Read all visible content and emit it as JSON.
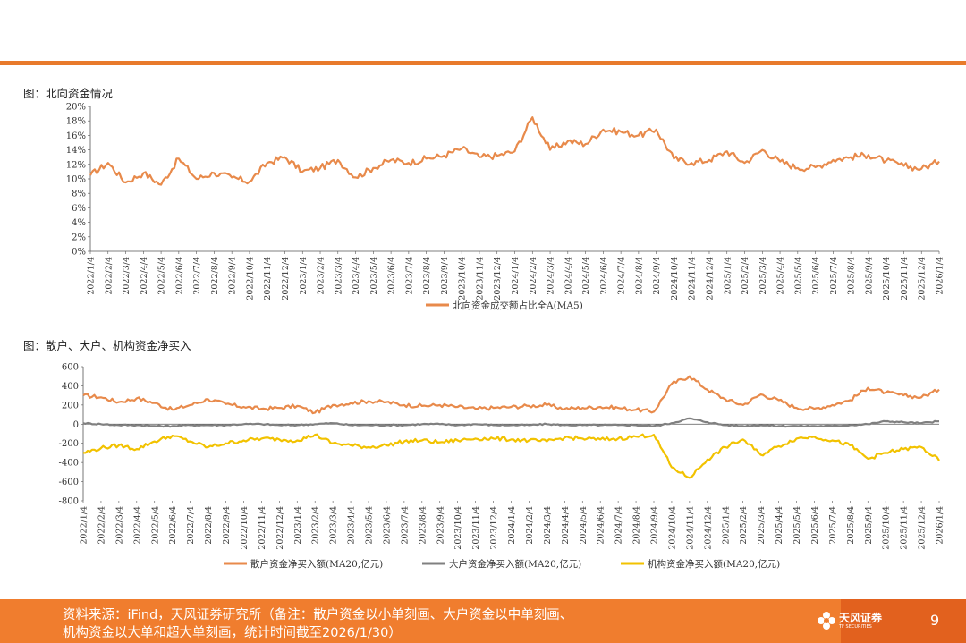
{
  "figure1_title": "图：北向资金情况",
  "figure2_title": "图：散户、大户、机构资金净买入",
  "footer": {
    "line1": "资料来源：iFind，天风证券研究所（备注：散户资金以小单刻画、大户资金以中单刻画、",
    "line2": "机构资金以大单和超大单刻画，统计时间截至2026/1/30）",
    "logo_text": "天风证券",
    "logo_sub": "TF SECURITIES",
    "page_number": "9"
  },
  "colors": {
    "orange": "#E88A4B",
    "gray": "#808080",
    "yellow": "#F2C200",
    "accent": "#E87A2B",
    "footer": "#F07D2E"
  },
  "chart_data": [
    {
      "type": "line",
      "ylim": [
        0,
        20
      ],
      "y_ticks": [
        "0%",
        "2%",
        "4%",
        "6%",
        "8%",
        "10%",
        "12%",
        "14%",
        "16%",
        "18%",
        "20%"
      ],
      "x_labels": [
        "2022/1/4",
        "2022/2/4",
        "2022/3/4",
        "2022/4/4",
        "2022/5/4",
        "2022/6/4",
        "2022/7/4",
        "2022/8/4",
        "2022/9/4",
        "2022/10/4",
        "2022/11/4",
        "2022/12/4",
        "2023/1/4",
        "2023/2/4",
        "2023/3/4",
        "2023/4/4",
        "2023/5/4",
        "2023/6/4",
        "2023/7/4",
        "2023/8/4",
        "2023/9/4",
        "2023/10/4",
        "2023/11/4",
        "2023/12/4",
        "2024/1/4",
        "2024/2/4",
        "2024/3/4",
        "2024/4/4",
        "2024/5/4",
        "2024/6/4",
        "2024/7/4",
        "2024/8/4",
        "2024/9/4",
        "2024/10/4",
        "2024/11/4",
        "2024/12/4",
        "2025/1/4",
        "2025/2/4",
        "2025/3/4",
        "2025/4/4",
        "2025/5/4",
        "2025/6/4",
        "2025/7/4",
        "2025/8/4",
        "2025/9/4",
        "2025/10/4",
        "2025/11/4",
        "2025/12/4",
        "2026/1/4"
      ],
      "series": [
        {
          "name": "北向资金成交额占比全A(MA5)",
          "color": "#E88A4B",
          "values": [
            10.5,
            12.2,
            9.5,
            10.8,
            9.2,
            12.8,
            10.0,
            10.8,
            10.2,
            9.6,
            12.2,
            13.0,
            11.0,
            11.5,
            12.6,
            10.2,
            11.5,
            12.6,
            12.2,
            12.8,
            13.2,
            14.2,
            13.0,
            13.2,
            13.8,
            18.5,
            14.0,
            15.2,
            14.8,
            16.8,
            16.5,
            16.0,
            16.8,
            12.8,
            12.2,
            12.6,
            13.8,
            12.2,
            14.0,
            12.4,
            11.5,
            11.6,
            12.6,
            13.0,
            13.3,
            12.5,
            11.8,
            11.4,
            12.4
          ]
        }
      ]
    },
    {
      "type": "line",
      "ylim": [
        -800,
        600
      ],
      "y_ticks": [
        "-800",
        "-600",
        "-400",
        "-200",
        "0",
        "200",
        "400",
        "600"
      ],
      "x_labels": [
        "2022/1/4",
        "2022/2/4",
        "2022/3/4",
        "2022/4/4",
        "2022/5/4",
        "2022/6/4",
        "2022/7/4",
        "2022/8/4",
        "2022/9/4",
        "2022/10/4",
        "2022/11/4",
        "2022/12/4",
        "2023/1/4",
        "2023/2/4",
        "2023/3/4",
        "2023/4/4",
        "2023/5/4",
        "2023/6/4",
        "2023/7/4",
        "2023/8/4",
        "2023/9/4",
        "2023/10/4",
        "2023/11/4",
        "2023/12/4",
        "2024/1/4",
        "2024/2/4",
        "2024/3/4",
        "2024/4/4",
        "2024/5/4",
        "2024/6/4",
        "2024/7/4",
        "2024/8/4",
        "2024/9/4",
        "2024/10/4",
        "2024/11/4",
        "2024/12/4",
        "2025/1/4",
        "2025/2/4",
        "2025/3/4",
        "2025/4/4",
        "2025/5/4",
        "2025/6/4",
        "2025/7/4",
        "2025/8/4",
        "2025/9/4",
        "2025/10/4",
        "2025/11/4",
        "2025/12/4",
        "2026/1/4"
      ],
      "series": [
        {
          "name": "散户资金净买入额(MA20,亿元)",
          "color": "#E88A4B",
          "values": [
            300,
            280,
            230,
            270,
            220,
            150,
            200,
            260,
            210,
            180,
            160,
            170,
            190,
            120,
            200,
            220,
            240,
            230,
            200,
            190,
            200,
            180,
            160,
            170,
            180,
            190,
            200,
            160,
            170,
            180,
            170,
            150,
            130,
            420,
            500,
            360,
            260,
            200,
            310,
            250,
            170,
            160,
            200,
            250,
            380,
            330,
            300,
            280,
            360
          ]
        },
        {
          "name": "大户资金净买入额(MA20,亿元)",
          "color": "#808080",
          "values": [
            10,
            0,
            -10,
            -10,
            -20,
            -20,
            -10,
            -10,
            -10,
            0,
            0,
            -10,
            -10,
            0,
            10,
            -10,
            -10,
            -10,
            -10,
            0,
            0,
            -10,
            0,
            -10,
            -10,
            -10,
            0,
            -10,
            -10,
            -10,
            -10,
            -10,
            -20,
            10,
            60,
            20,
            -10,
            -20,
            -10,
            -20,
            -20,
            -20,
            -20,
            -10,
            0,
            30,
            20,
            10,
            30
          ]
        },
        {
          "name": "机构资金净买入额(MA20,亿元)",
          "color": "#F2C200",
          "values": [
            -300,
            -250,
            -220,
            -260,
            -180,
            -120,
            -180,
            -240,
            -200,
            -170,
            -150,
            -160,
            -170,
            -110,
            -200,
            -220,
            -240,
            -220,
            -180,
            -170,
            -190,
            -170,
            -150,
            -150,
            -160,
            -170,
            -180,
            -140,
            -150,
            -160,
            -150,
            -130,
            -110,
            -450,
            -560,
            -370,
            -240,
            -160,
            -320,
            -230,
            -150,
            -130,
            -170,
            -220,
            -360,
            -300,
            -260,
            -240,
            -380
          ]
        }
      ]
    }
  ]
}
